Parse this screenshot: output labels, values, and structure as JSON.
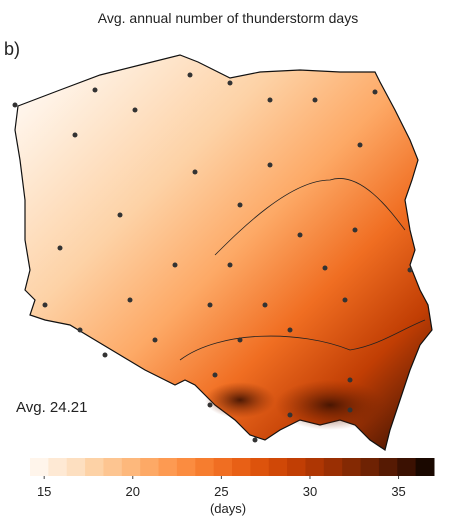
{
  "header": {
    "title": "Avg. annual number of thunderstorm days",
    "panel_label": "b)"
  },
  "map": {
    "annotation": "Avg. 24.21"
  },
  "colorbar": {
    "label": "(days)",
    "lim": [
      14.2,
      37
    ],
    "ticks": [
      15,
      20,
      25,
      30,
      35
    ],
    "colors": [
      "#fff5eb",
      "#fee9d4",
      "#fddfc0",
      "#fdd2a6",
      "#fdc591",
      "#fdb87c",
      "#fda966",
      "#fd9a52",
      "#fb8c40",
      "#f67d2f",
      "#f06e22",
      "#e86016",
      "#dd530c",
      "#d04807",
      "#c13e04",
      "#ae3603",
      "#9a2f03",
      "#842903",
      "#6e2203",
      "#561a03",
      "#3b1102",
      "#1a0800"
    ]
  }
}
